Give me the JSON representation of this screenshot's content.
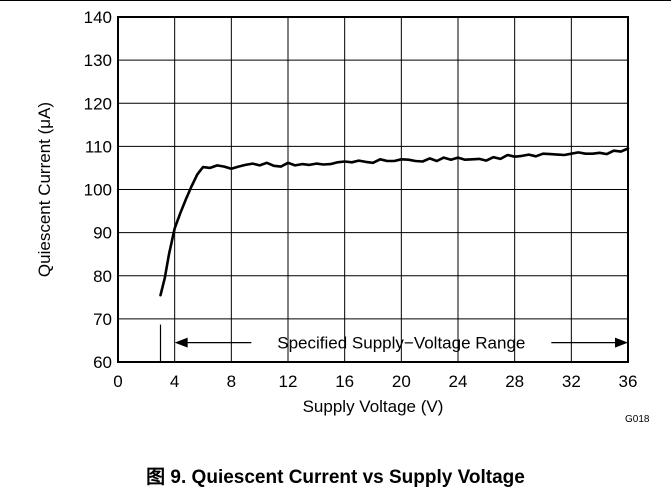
{
  "figure": {
    "caption": "图 9. Quiescent Current vs Supply Voltage",
    "code": "G018"
  },
  "chart_data": {
    "type": "line",
    "title": "",
    "xlabel": "Supply Voltage (V)",
    "ylabel": "Quiescent Current (μA)",
    "xlim": [
      0,
      36
    ],
    "ylim": [
      60,
      140
    ],
    "xticks": [
      0,
      4,
      8,
      12,
      16,
      20,
      24,
      28,
      32,
      36
    ],
    "yticks": [
      60,
      70,
      80,
      90,
      100,
      110,
      120,
      130,
      140
    ],
    "grid": true,
    "legend": "none",
    "colors": {
      "line": "#000000",
      "grid": "#000000"
    },
    "series": [
      {
        "x": [
          3.0,
          3.3,
          3.6,
          4.0,
          4.4,
          4.8,
          5.2,
          5.6,
          6.0,
          6.5,
          7.0,
          7.5,
          8.0,
          8.5,
          9.0,
          9.5,
          10.0,
          10.5,
          11.0,
          11.5,
          12.0,
          12.5,
          13.0,
          13.5,
          14.0,
          14.5,
          15.0,
          15.5,
          16.0,
          16.5,
          17.0,
          17.5,
          18.0,
          18.5,
          19.0,
          19.5,
          20.0,
          20.5,
          21.0,
          21.5,
          22.0,
          22.5,
          23.0,
          23.5,
          24.0,
          24.5,
          25.0,
          25.5,
          26.0,
          26.5,
          27.0,
          27.5,
          28.0,
          28.5,
          29.0,
          29.5,
          30.0,
          30.5,
          31.0,
          31.5,
          32.0,
          32.5,
          33.0,
          33.5,
          34.0,
          34.5,
          35.0,
          35.5,
          36.0
        ],
        "y": [
          75.5,
          79.5,
          85.0,
          91.0,
          94.5,
          97.8,
          100.8,
          103.5,
          105.2,
          105.0,
          105.6,
          105.3,
          104.8,
          105.3,
          105.7,
          106.0,
          105.6,
          106.2,
          105.5,
          105.3,
          106.2,
          105.6,
          105.9,
          105.7,
          106.0,
          105.8,
          105.9,
          106.3,
          106.5,
          106.3,
          106.7,
          106.4,
          106.2,
          107.0,
          106.6,
          106.6,
          107.0,
          106.9,
          106.6,
          106.5,
          107.2,
          106.6,
          107.4,
          106.9,
          107.4,
          106.9,
          107.0,
          107.1,
          106.7,
          107.5,
          107.1,
          108.0,
          107.6,
          107.8,
          108.1,
          107.7,
          108.3,
          108.2,
          108.1,
          108.0,
          108.3,
          108.6,
          108.3,
          108.3,
          108.5,
          108.2,
          109.0,
          108.8,
          109.5
        ]
      }
    ],
    "annotations": [
      {
        "text": "Specified Supply−Voltage Range",
        "x_start": 4,
        "x_end": 36,
        "y": 64.5
      }
    ]
  }
}
